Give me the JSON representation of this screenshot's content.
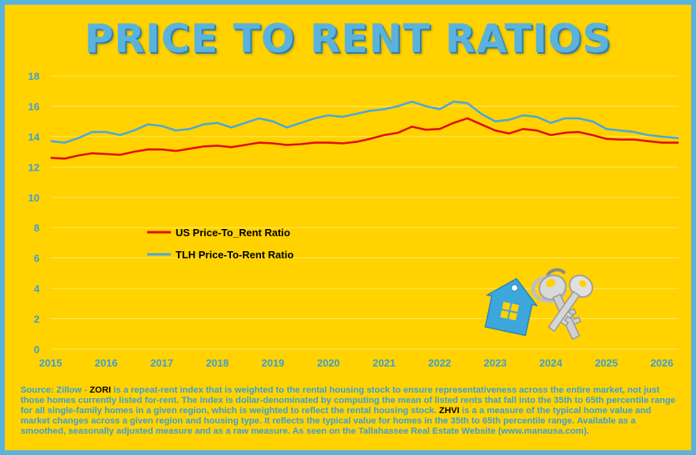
{
  "title": "PRICE TO RENT RATIOS",
  "chart_data": {
    "type": "line",
    "title": "PRICE TO RENT RATIOS",
    "xlabel": "",
    "ylabel": "",
    "xlim": [
      2015,
      2026.3
    ],
    "ylim": [
      0,
      18
    ],
    "y_ticks": [
      0,
      2,
      4,
      6,
      8,
      10,
      12,
      14,
      16,
      18
    ],
    "x_ticks": [
      2015,
      2016,
      2017,
      2018,
      2019,
      2020,
      2021,
      2022,
      2023,
      2024,
      2025,
      2026
    ],
    "x_tick_labels": [
      "2015",
      "2016",
      "2017",
      "2018",
      "2019",
      "2020",
      "2021",
      "2022",
      "2023",
      "2024",
      "2025",
      "2026"
    ],
    "grid": true,
    "legend_position": "middle-left",
    "series": [
      {
        "name": "US Price-To_Rent Ratio",
        "color": "#e01010",
        "points": [
          [
            2015.0,
            12.6
          ],
          [
            2015.25,
            12.55
          ],
          [
            2015.5,
            12.75
          ],
          [
            2015.75,
            12.9
          ],
          [
            2016.0,
            12.85
          ],
          [
            2016.25,
            12.8
          ],
          [
            2016.5,
            13.0
          ],
          [
            2016.75,
            13.15
          ],
          [
            2017.0,
            13.15
          ],
          [
            2017.25,
            13.05
          ],
          [
            2017.5,
            13.2
          ],
          [
            2017.75,
            13.35
          ],
          [
            2018.0,
            13.4
          ],
          [
            2018.25,
            13.3
          ],
          [
            2018.5,
            13.45
          ],
          [
            2018.75,
            13.6
          ],
          [
            2019.0,
            13.55
          ],
          [
            2019.25,
            13.45
          ],
          [
            2019.5,
            13.5
          ],
          [
            2019.75,
            13.6
          ],
          [
            2020.0,
            13.6
          ],
          [
            2020.25,
            13.55
          ],
          [
            2020.5,
            13.65
          ],
          [
            2020.75,
            13.85
          ],
          [
            2021.0,
            14.1
          ],
          [
            2021.25,
            14.25
          ],
          [
            2021.5,
            14.65
          ],
          [
            2021.75,
            14.45
          ],
          [
            2022.0,
            14.5
          ],
          [
            2022.25,
            14.9
          ],
          [
            2022.5,
            15.2
          ],
          [
            2022.75,
            14.8
          ],
          [
            2023.0,
            14.4
          ],
          [
            2023.25,
            14.2
          ],
          [
            2023.5,
            14.5
          ],
          [
            2023.75,
            14.4
          ],
          [
            2024.0,
            14.1
          ],
          [
            2024.25,
            14.25
          ],
          [
            2024.5,
            14.3
          ],
          [
            2024.75,
            14.1
          ],
          [
            2025.0,
            13.85
          ],
          [
            2025.25,
            13.8
          ],
          [
            2025.5,
            13.8
          ],
          [
            2025.75,
            13.7
          ],
          [
            2026.0,
            13.6
          ],
          [
            2026.3,
            13.6
          ]
        ]
      },
      {
        "name": "TLH Price-To-Rent Ratio",
        "color": "#4aa8dc",
        "points": [
          [
            2015.0,
            13.7
          ],
          [
            2015.25,
            13.6
          ],
          [
            2015.5,
            13.9
          ],
          [
            2015.75,
            14.3
          ],
          [
            2016.0,
            14.3
          ],
          [
            2016.25,
            14.1
          ],
          [
            2016.5,
            14.4
          ],
          [
            2016.75,
            14.8
          ],
          [
            2017.0,
            14.7
          ],
          [
            2017.25,
            14.4
          ],
          [
            2017.5,
            14.5
          ],
          [
            2017.75,
            14.8
          ],
          [
            2018.0,
            14.9
          ],
          [
            2018.25,
            14.6
          ],
          [
            2018.5,
            14.9
          ],
          [
            2018.75,
            15.2
          ],
          [
            2019.0,
            15.0
          ],
          [
            2019.25,
            14.6
          ],
          [
            2019.5,
            14.9
          ],
          [
            2019.75,
            15.2
          ],
          [
            2020.0,
            15.4
          ],
          [
            2020.25,
            15.3
          ],
          [
            2020.5,
            15.5
          ],
          [
            2020.75,
            15.7
          ],
          [
            2021.0,
            15.8
          ],
          [
            2021.25,
            16.0
          ],
          [
            2021.5,
            16.3
          ],
          [
            2021.75,
            16.0
          ],
          [
            2022.0,
            15.8
          ],
          [
            2022.25,
            16.3
          ],
          [
            2022.5,
            16.2
          ],
          [
            2022.75,
            15.5
          ],
          [
            2023.0,
            15.0
          ],
          [
            2023.25,
            15.1
          ],
          [
            2023.5,
            15.4
          ],
          [
            2023.75,
            15.3
          ],
          [
            2024.0,
            14.9
          ],
          [
            2024.25,
            15.2
          ],
          [
            2024.5,
            15.2
          ],
          [
            2024.75,
            15.0
          ],
          [
            2025.0,
            14.5
          ],
          [
            2025.25,
            14.4
          ],
          [
            2025.5,
            14.3
          ],
          [
            2025.75,
            14.1
          ],
          [
            2026.0,
            14.0
          ],
          [
            2026.3,
            13.9
          ]
        ]
      }
    ],
    "colors": {
      "background": "#ffd200",
      "frame": "#5bb3dd",
      "axis_text": "#3d9fd3",
      "grid": "#ffe866"
    }
  },
  "source": {
    "prefix": "Source: Zillow - ",
    "zori": "ZORI",
    "zori_text": " is a repeat-rent index that is weighted to the rental housing stock to ensure representativeness across the entire market, not just those homes currently listed for-rent. The index is dollar-denominated by computing the mean of listed rents that fall into the 35th to 65th percentile range for all single-family homes in a given region, which is weighted to reflect the rental housing stock. ",
    "zhvi": "ZHVI",
    "zhvi_text": " is a a measure of the typical home value and market changes across a given region and housing type. It reflects the typical value for homes in the 35th to 65th percentile range. Available as a smoothed, seasonally adjusted measure and as a raw measure. As seen on the Tallahassee Real Estate Website (www.manausa.com)."
  }
}
